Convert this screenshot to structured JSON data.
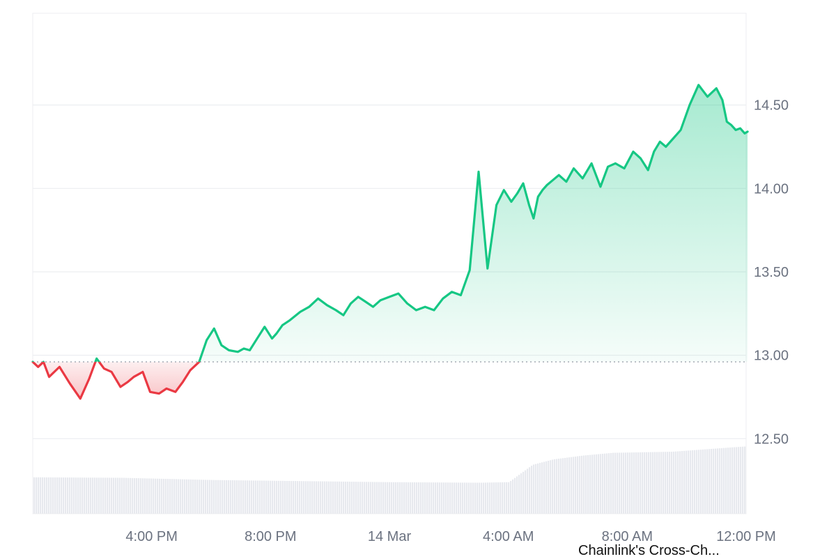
{
  "chart_data": {
    "type": "area",
    "caption": "Chainlink's Cross-Ch...",
    "baseline": 12.96,
    "ylim": [
      12.05,
      15.05
    ],
    "y_ticks": [
      {
        "value": 12.5,
        "label": "12.50"
      },
      {
        "value": 13.0,
        "label": "13.00"
      },
      {
        "value": 13.5,
        "label": "13.50"
      },
      {
        "value": 14.0,
        "label": "14.00"
      },
      {
        "value": 14.5,
        "label": "14.50"
      }
    ],
    "x_ticks": [
      {
        "t": 4.0,
        "label": "4:00 PM"
      },
      {
        "t": 8.0,
        "label": "8:00 PM"
      },
      {
        "t": 12.0,
        "label": "14 Mar"
      },
      {
        "t": 16.0,
        "label": "4:00 AM"
      },
      {
        "t": 20.0,
        "label": "8:00 AM"
      },
      {
        "t": 24.0,
        "label": "12:00 PM"
      }
    ],
    "x_range": [
      0.0,
      24.0
    ],
    "series": [
      {
        "t": [
          0.0,
          0.18,
          0.36,
          0.55,
          0.9,
          1.25,
          1.6,
          1.9,
          2.15,
          2.4,
          2.65,
          2.95,
          3.2,
          3.4,
          3.7,
          3.95,
          4.25,
          4.5,
          4.8,
          5.05,
          5.3,
          5.6,
          5.85,
          6.1,
          6.35,
          6.6,
          6.9,
          7.1,
          7.3,
          7.55,
          7.8,
          8.05,
          8.2,
          8.4,
          8.65,
          9.0,
          9.3,
          9.6,
          9.9,
          10.2,
          10.45,
          10.7,
          10.95,
          11.2,
          11.45,
          11.7,
          12.0,
          12.3,
          12.6,
          12.9,
          13.2,
          13.5,
          13.8,
          14.1,
          14.4,
          14.7,
          15.0,
          15.3,
          15.6,
          15.85,
          16.1,
          16.3,
          16.5,
          16.7,
          16.85,
          17.0,
          17.15,
          17.3,
          17.5,
          17.7,
          17.95,
          18.2,
          18.5,
          18.8,
          19.1,
          19.35,
          19.6,
          19.9,
          20.2,
          20.45,
          20.7,
          20.9,
          21.1,
          21.3,
          21.55,
          21.8,
          22.1,
          22.4,
          22.7,
          23.0,
          23.2,
          23.35,
          23.5,
          23.65,
          23.8,
          23.95,
          24.05
        ],
        "values": [
          12.96,
          12.93,
          12.96,
          12.87,
          12.93,
          12.83,
          12.74,
          12.86,
          12.98,
          12.92,
          12.9,
          12.81,
          12.84,
          12.87,
          12.9,
          12.78,
          12.77,
          12.8,
          12.78,
          12.84,
          12.91,
          12.96,
          13.09,
          13.16,
          13.06,
          13.03,
          13.02,
          13.04,
          13.03,
          13.1,
          13.17,
          13.1,
          13.13,
          13.18,
          13.21,
          13.26,
          13.29,
          13.34,
          13.3,
          13.27,
          13.24,
          13.31,
          13.35,
          13.32,
          13.29,
          13.33,
          13.35,
          13.37,
          13.31,
          13.27,
          13.29,
          13.27,
          13.34,
          13.38,
          13.36,
          13.51,
          14.1,
          13.52,
          13.9,
          13.99,
          13.92,
          13.97,
          14.03,
          13.9,
          13.82,
          13.95,
          13.99,
          14.02,
          14.05,
          14.08,
          14.04,
          14.12,
          14.06,
          14.15,
          14.01,
          14.13,
          14.15,
          14.12,
          14.22,
          14.18,
          14.11,
          14.22,
          14.28,
          14.25,
          14.3,
          14.35,
          14.5,
          14.62,
          14.55,
          14.6,
          14.53,
          14.4,
          14.38,
          14.35,
          14.36,
          14.33,
          14.34
        ]
      }
    ],
    "volume": {
      "t": [
        0.0,
        3.0,
        6.0,
        9.0,
        12.0,
        15.0,
        16.0,
        16.3,
        16.8,
        17.5,
        18.5,
        19.5,
        20.5,
        21.5,
        22.5,
        23.5,
        24.05
      ],
      "values": [
        0.67,
        0.66,
        0.62,
        0.6,
        0.58,
        0.57,
        0.58,
        0.7,
        0.9,
        1.0,
        1.07,
        1.12,
        1.13,
        1.14,
        1.18,
        1.22,
        1.24
      ]
    },
    "colors": {
      "up": "#16c784",
      "down": "#ea3943",
      "up_fill": "#16c784",
      "down_fill": "#ea3943",
      "grid": "#eceef1",
      "volume": "#e7e9ee",
      "axis_text": "#6b7280",
      "baseline": "#9ca3af"
    }
  }
}
